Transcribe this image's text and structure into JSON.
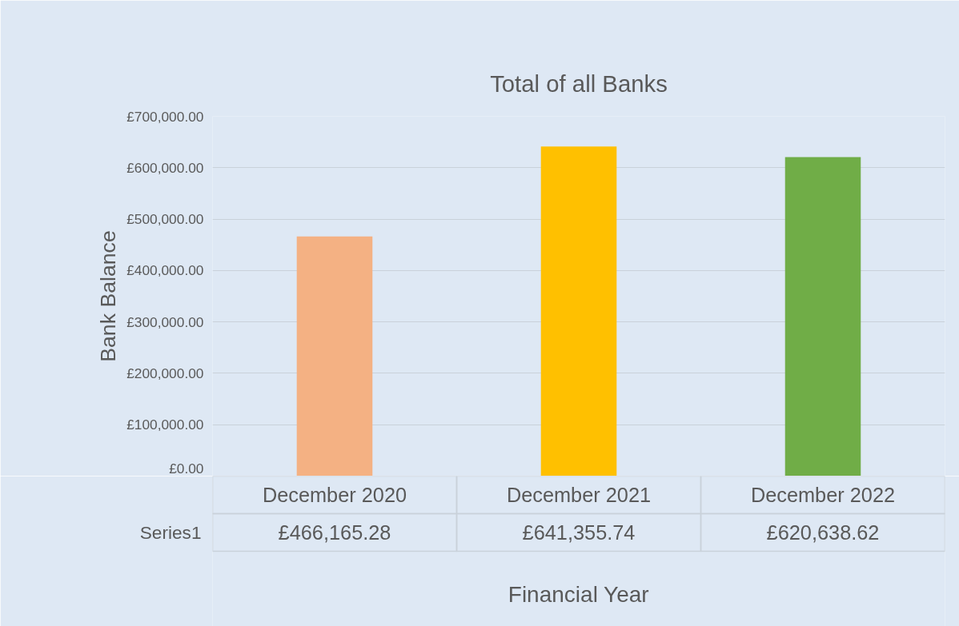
{
  "chart_data": {
    "type": "bar",
    "title": "Total of all Banks",
    "xlabel": "Financial Year",
    "ylabel": "Bank Balance",
    "categories": [
      "December 2020",
      "December 2021",
      "December 2022"
    ],
    "series": [
      {
        "name": "Series1",
        "colors": [
          "#f4b183",
          "#ffc000",
          "#70ad47"
        ],
        "values": [
          466165.28,
          641355.74,
          620638.62
        ],
        "value_labels": [
          "£466,165.28",
          "£641,355.74",
          "£620,638.62"
        ]
      }
    ],
    "ylim": [
      0,
      700000
    ],
    "yticks": [
      {
        "value": 0,
        "label": "£0.00"
      },
      {
        "value": 100000,
        "label": "£100,000.00"
      },
      {
        "value": 200000,
        "label": "£200,000.00"
      },
      {
        "value": 300000,
        "label": "£300,000.00"
      },
      {
        "value": 400000,
        "label": "£400,000.00"
      },
      {
        "value": 500000,
        "label": "£500,000.00"
      },
      {
        "value": 600000,
        "label": "£600,000.00"
      },
      {
        "value": 700000,
        "label": "£700,000.00"
      }
    ],
    "grid": "y"
  }
}
